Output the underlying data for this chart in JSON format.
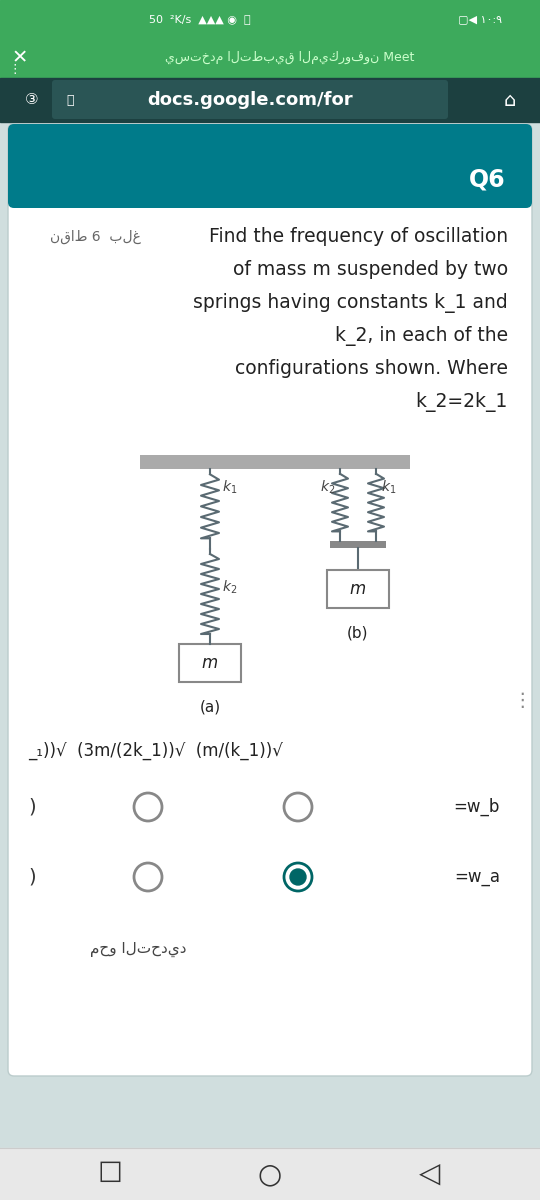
{
  "bg_green": "#3DAA5C",
  "bg_green_dark": "#2E8B4A",
  "bg_teal_nav": "#1B5E5E",
  "bg_url_bar": "#1A3A3A",
  "bg_page": "#D8E8E8",
  "card_header": "#007B8A",
  "card_bg": "#FFFFFF",
  "url_text": "docs.google.com/for",
  "arabic_mic": "يستخدم التطبيق الميكروفون Meet",
  "q_label": "Q6",
  "points_label": "نقاط 6  بلغ",
  "q_line1": "Find the frequency of oscillation",
  "q_line2": "of mass m suspended by two",
  "q_line3": "springs having constants k_1 and",
  "q_line4": "k_2, in each of the",
  "q_line5": "configurations shown. Where",
  "q_line6": "k_2=2k_1",
  "formula_text": "_₁))√  (3m/(2k_1))√  (m/(k_1))√",
  "option_wb": "=w_b",
  "option_wa": "=w_a",
  "arabic_clear": "محو التحديد",
  "spring_color": "#5A6A72",
  "ceiling_color": "#AAAAAA",
  "mass_edge": "#888888",
  "radio_sel_color": "#006666",
  "radio_border": "#888888",
  "text_dark": "#222222",
  "text_mid": "#444444"
}
